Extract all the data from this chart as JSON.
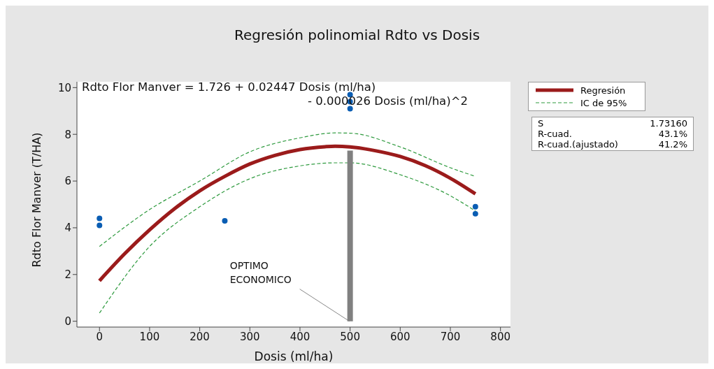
{
  "chart_data": {
    "type": "line",
    "title": "Regresión polinomial Rdto vs Dosis",
    "xlabel": "Dosis (ml/ha)",
    "ylabel": "Rdto Flor Manver (T/HA)",
    "xlim": [
      -45,
      820
    ],
    "xticks": [
      0,
      100,
      200,
      300,
      400,
      500,
      600,
      700,
      800
    ],
    "ylim": [
      -0.25,
      10.25
    ],
    "yticks": [
      0,
      2,
      4,
      6,
      8,
      10
    ],
    "legend": "right",
    "series": [
      {
        "type": "scatter",
        "color": "#0a5db3",
        "marker": "circle",
        "x": [
          0,
          0,
          250,
          500,
          500,
          500,
          750,
          750
        ],
        "values": [
          4.1,
          4.4,
          4.3,
          9.1,
          9.4,
          9.7,
          4.6,
          4.9
        ]
      },
      {
        "name": "Regresión",
        "color": "#9b1b1b",
        "line_style": "solid",
        "marker": "none",
        "x": [
          0,
          50,
          100,
          150,
          200,
          250,
          300,
          350,
          400,
          450,
          470,
          500,
          550,
          600,
          650,
          700,
          750
        ],
        "values": [
          1.73,
          2.88,
          3.91,
          4.82,
          5.58,
          6.2,
          6.73,
          7.1,
          7.35,
          7.47,
          7.49,
          7.46,
          7.3,
          7.05,
          6.66,
          6.12,
          5.45
        ]
      },
      {
        "name": "IC de 95%",
        "color": "#2e9a3e",
        "line_style": "dashed",
        "marker": "none",
        "x": [
          0,
          100,
          200,
          300,
          400,
          470,
          500,
          600,
          700,
          750
        ],
        "values": [
          3.2,
          4.78,
          6.0,
          7.25,
          7.85,
          8.06,
          8.05,
          7.46,
          6.57,
          6.2
        ]
      },
      {
        "color": "#2e9a3e",
        "line_style": "dashed",
        "marker": "none",
        "x": [
          0,
          100,
          200,
          300,
          400,
          470,
          500,
          600,
          700,
          750
        ],
        "values": [
          0.35,
          3.2,
          4.9,
          6.1,
          6.65,
          6.78,
          6.78,
          6.27,
          5.37,
          4.72
        ]
      },
      {
        "color": "#808080",
        "line_style": "solid",
        "marker": "none",
        "x": [
          500,
          500
        ],
        "values": [
          0,
          7.3
        ]
      }
    ],
    "annotations": [
      "Rdto Flor Manver = 1.726 + 0.02447 Dosis (ml/ha)",
      "- 0.000026 Dosis (ml/ha)^2",
      "S",
      "1.73160",
      "R-cuad.",
      "43.1%",
      "R-cuad.(ajustado)",
      "41.2%",
      {
        "text": "OPTIMO\nECONOMICO",
        "x": 500,
        "y": 0
      }
    ]
  }
}
